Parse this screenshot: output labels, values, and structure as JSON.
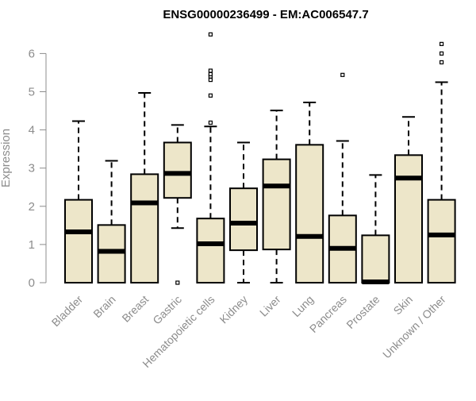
{
  "chart_data": {
    "type": "boxplot",
    "title": "ENSG00000236499 - EM:AC006547.7",
    "xlabel": "",
    "ylabel": "Expression",
    "ylim": [
      0,
      6.5
    ],
    "yticks": [
      0,
      1,
      2,
      3,
      4,
      5,
      6
    ],
    "grid": false,
    "legend": "none",
    "colors": {
      "box_fill": "#ede6c9",
      "stroke": "#000000",
      "axis_text": "#8c8c8c",
      "title": "#000000"
    },
    "categories": [
      "Bladder",
      "Brain",
      "Breast",
      "Gastric",
      "Hematopoietic cells",
      "Kidney",
      "Liver",
      "Lung",
      "Pancreas",
      "Prostate",
      "Skin",
      "Unknown / Other"
    ],
    "boxes": [
      {
        "category": "Bladder",
        "whisker_low": 0,
        "q1": 0,
        "median": 1.33,
        "q3": 2.17,
        "whisker_high": 4.23,
        "outliers": []
      },
      {
        "category": "Brain",
        "whisker_low": 0,
        "q1": 0,
        "median": 0.82,
        "q3": 1.51,
        "whisker_high": 3.19,
        "outliers": []
      },
      {
        "category": "Breast",
        "whisker_low": 0,
        "q1": 0,
        "median": 2.09,
        "q3": 2.84,
        "whisker_high": 4.97,
        "outliers": []
      },
      {
        "category": "Gastric",
        "whisker_low": 1.43,
        "q1": 2.22,
        "median": 2.86,
        "q3": 3.67,
        "whisker_high": 4.13,
        "outliers": [
          0
        ]
      },
      {
        "category": "Hematopoietic cells",
        "whisker_low": 0,
        "q1": 0,
        "median": 1.02,
        "q3": 1.68,
        "whisker_high": 4.09,
        "outliers": [
          4.19,
          4.9,
          5.31,
          5.4,
          5.46,
          5.55,
          6.5
        ]
      },
      {
        "category": "Kidney",
        "whisker_low": 0,
        "q1": 0.85,
        "median": 1.56,
        "q3": 2.47,
        "whisker_high": 3.67,
        "outliers": []
      },
      {
        "category": "Liver",
        "whisker_low": 0,
        "q1": 0.87,
        "median": 2.53,
        "q3": 3.23,
        "whisker_high": 4.51,
        "outliers": []
      },
      {
        "category": "Lung",
        "whisker_low": 0,
        "q1": 0,
        "median": 1.21,
        "q3": 3.61,
        "whisker_high": 4.72,
        "outliers": []
      },
      {
        "category": "Pancreas",
        "whisker_low": 0,
        "q1": 0,
        "median": 0.9,
        "q3": 1.76,
        "whisker_high": 3.71,
        "outliers": [
          5.44
        ]
      },
      {
        "category": "Prostate",
        "whisker_low": 0,
        "q1": 0,
        "median": 0.02,
        "q3": 1.24,
        "whisker_high": 2.82,
        "outliers": []
      },
      {
        "category": "Skin",
        "whisker_low": 0,
        "q1": 0,
        "median": 2.74,
        "q3": 3.34,
        "whisker_high": 4.34,
        "outliers": []
      },
      {
        "category": "Unknown / Other",
        "whisker_low": 0,
        "q1": 0,
        "median": 1.25,
        "q3": 2.17,
        "whisker_high": 5.25,
        "outliers": [
          5.77,
          6.0,
          6.25
        ]
      }
    ]
  }
}
